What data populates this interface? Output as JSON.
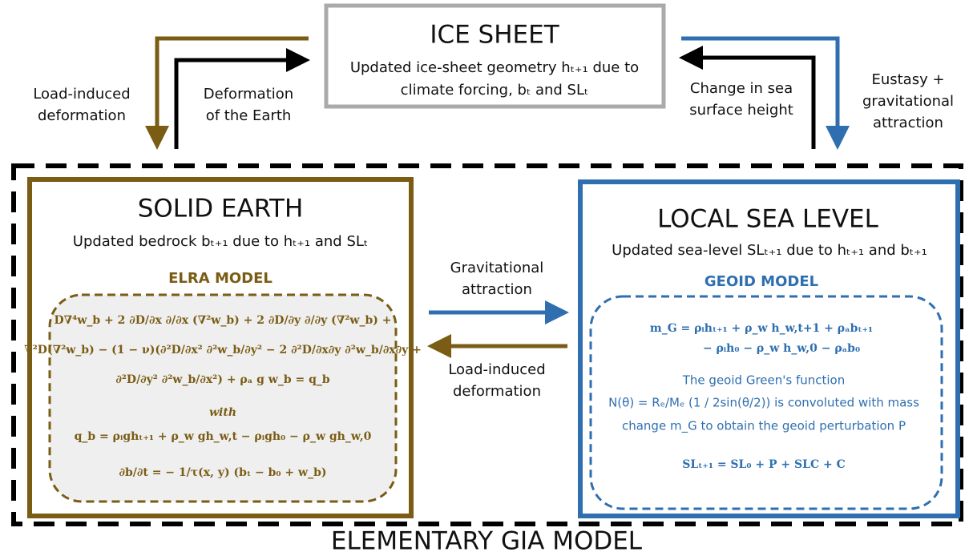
{
  "ice_sheet": {
    "title": "ICE SHEET",
    "lines": [
      "Updated ice-sheet geometry hₜ₊₁ due to",
      "climate forcing, bₜ and SLₜ"
    ]
  },
  "top_left_labels": {
    "load": [
      "Load-induced",
      "deformation"
    ],
    "deformation": [
      "Deformation",
      "of the Earth"
    ]
  },
  "top_right_labels": {
    "change": [
      "Change in sea",
      "surface height"
    ],
    "eustasy": [
      "Eustasy +",
      "gravitational",
      "attraction"
    ]
  },
  "solid_earth": {
    "title": "SOLID EARTH",
    "subtitle": "Updated bedrock bₜ₊₁ due to hₜ₊₁ and SLₜ",
    "model": "ELRA MODEL",
    "equations": [
      "D∇⁴w_b + 2 ∂D/∂x ∂/∂x (∇²w_b) + 2 ∂D/∂y ∂/∂y (∇²w_b) +",
      "∇²D(∇²w_b) − (1 − ν)(∂²D/∂x² ∂²w_b/∂y² − 2 ∂²D/∂x∂y ∂²w_b/∂x∂y +",
      "∂²D/∂y² ∂²w_b/∂x²) + ρₐ g w_b = q_b",
      "with",
      "q_b = ρᵢghₜ₊₁ + ρ_w gh_w,t − ρᵢgh₀ − ρ_w gh_w,0",
      "∂b/∂t = − 1/τ(x, y) (bₜ − b₀ + w_b)"
    ]
  },
  "middle_labels": {
    "gravitational": [
      "Gravitational",
      "attraction"
    ],
    "load": [
      "Load-induced",
      "deformation"
    ]
  },
  "local_sea_level": {
    "title": "LOCAL SEA LEVEL",
    "subtitle": "Updated sea-level SLₜ₊₁ due to hₜ₊₁ and bₜ₊₁",
    "model": "GEOID MODEL",
    "equations": [
      "m_G = ρᵢhₜ₊₁ + ρ_w h_w,t+1 + ρₐbₜ₊₁",
      "− ρᵢh₀ − ρ_w h_w,0 − ρₐb₀",
      "The geoid Green's function",
      "N(θ) = Rₑ/Mₑ (1 / 2sin(θ/2)) is convoluted with mass",
      "change m_G to obtain the geoid perturbation P",
      "SLₜ₊₁ = SL₀ + P + SLC + C"
    ]
  },
  "footer": {
    "title": "ELEMENTARY GIA MODEL"
  }
}
